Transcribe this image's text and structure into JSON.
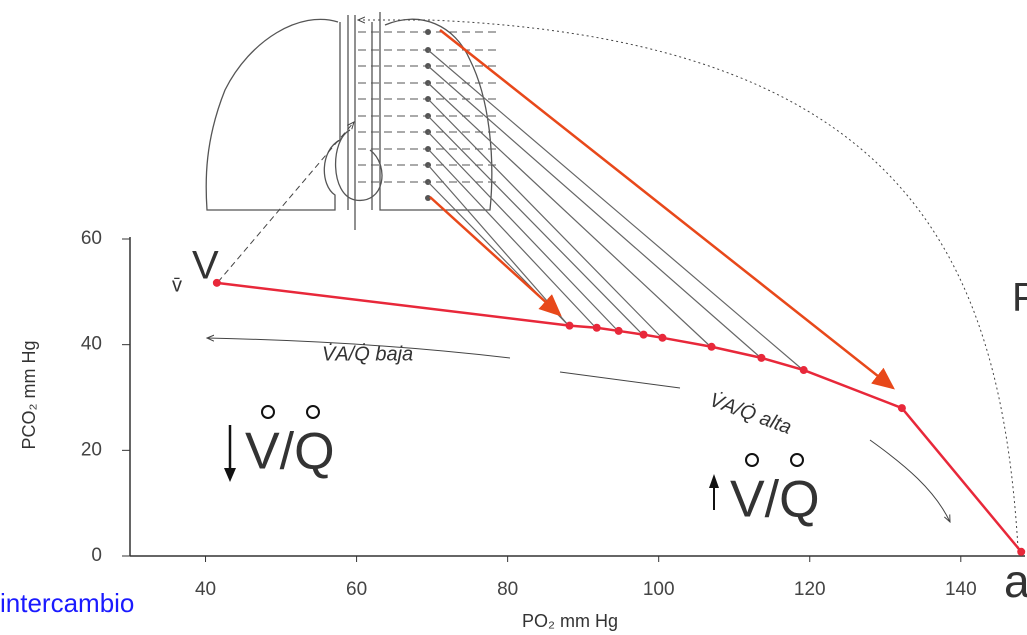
{
  "chart_data": {
    "type": "line",
    "x_label": "PO₂ mm Hg",
    "y_label": "PCO₂ mm Hg",
    "x": [
      41.5,
      88.2,
      91.8,
      94.7,
      98,
      100.5,
      107,
      113.6,
      119.2,
      132.2,
      148
    ],
    "series": [
      {
        "color": "#e8283a",
        "values": [
          51.7,
          43.6,
          43.2,
          42.6,
          41.9,
          41.3,
          39.6,
          37.5,
          35.2,
          28,
          0.8
        ]
      }
    ],
    "xlim": [
      30,
      148.5
    ],
    "ylim": [
      0,
      60
    ],
    "xticks": [
      40,
      60,
      80,
      100,
      120,
      140
    ],
    "yticks": [
      0,
      20,
      40,
      60
    ],
    "annotations": {
      "v_bar": "v̄",
      "v": "V",
      "low": "V/Q",
      "high": "V/Q",
      "p": "P",
      "a": "a",
      "intercambio": "intercambio",
      "baja": "V̇A/Q̇ baja",
      "alta": "V̇A/Q̇ alta"
    }
  }
}
